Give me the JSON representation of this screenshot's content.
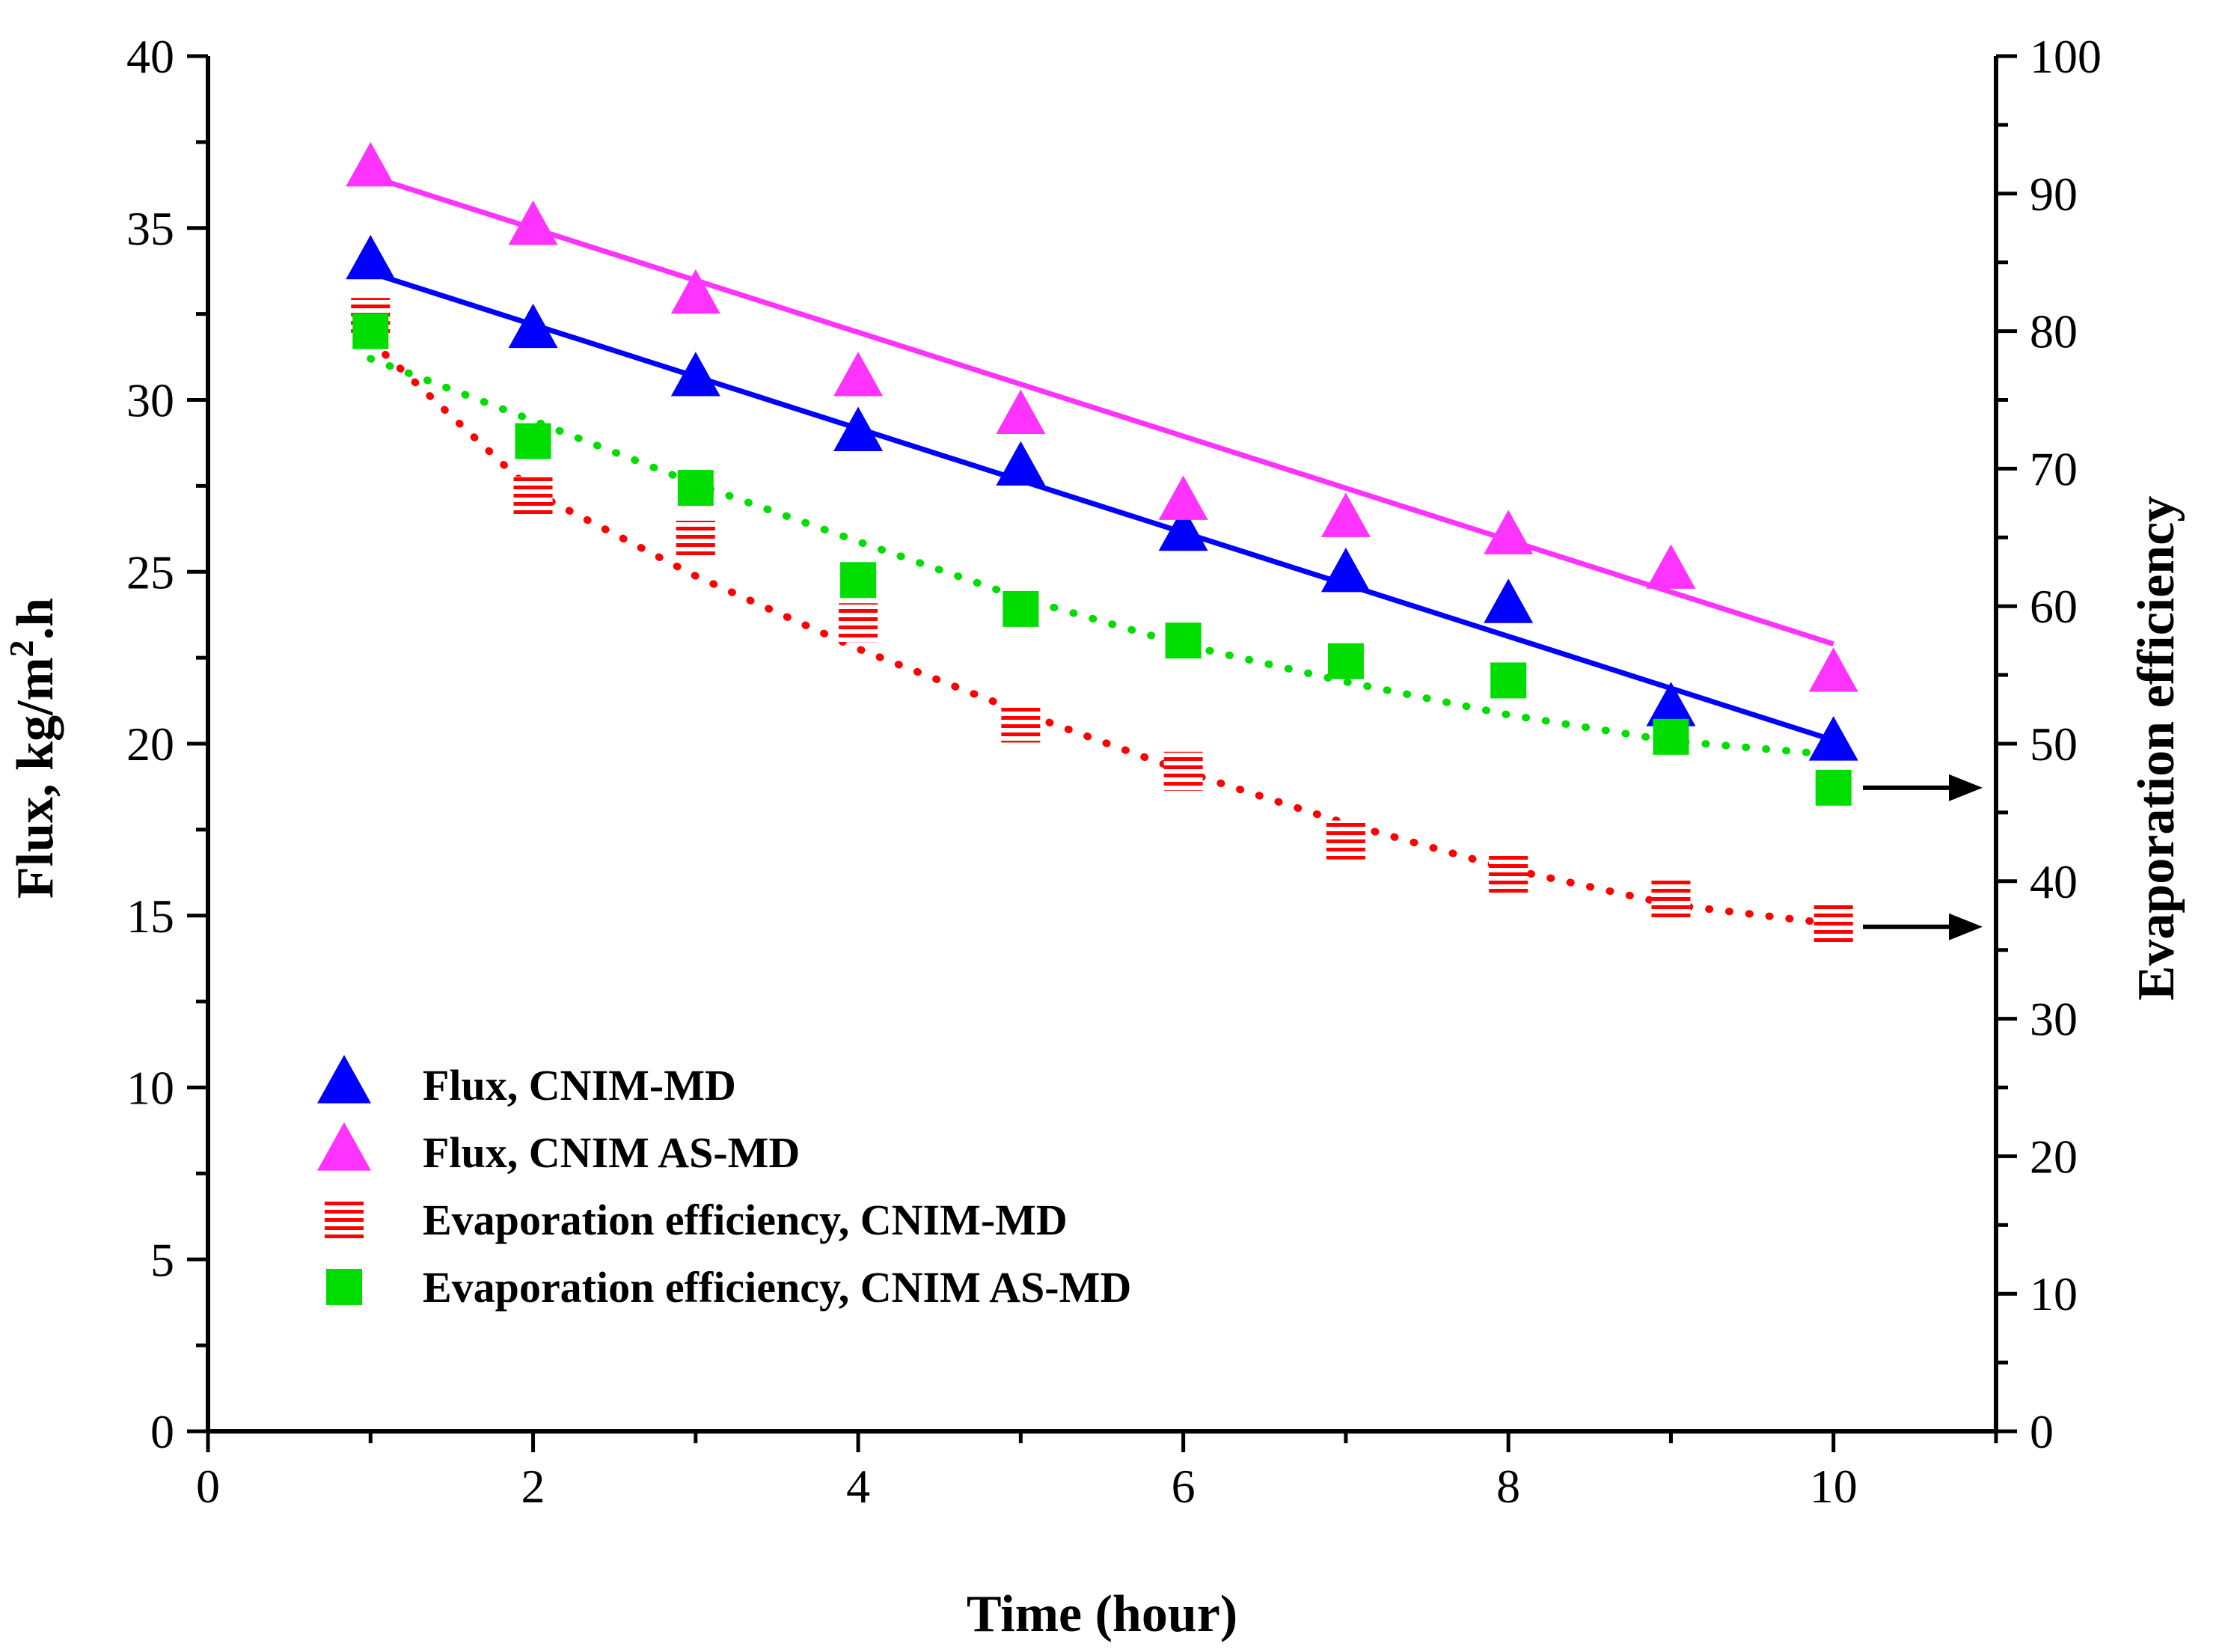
{
  "chart_data": {
    "type": "line",
    "title": "",
    "xlabel": "Time (hour)",
    "ylabel_left": {
      "prefix": "Flux, kg/m",
      "sup": "2",
      "suffix": ".h"
    },
    "ylabel_right": "Evaporation efficiency",
    "xlim": [
      0,
      11
    ],
    "ylim_left": [
      0,
      40
    ],
    "ylim_right": [
      0,
      100
    ],
    "x_ticks": [
      "0",
      "2",
      "4",
      "6",
      "8",
      "10"
    ],
    "y_left_ticks": [
      "0",
      "5",
      "10",
      "15",
      "20",
      "25",
      "30",
      "35",
      "40"
    ],
    "y_right_ticks": [
      "0",
      "10",
      "20",
      "30",
      "40",
      "50",
      "60",
      "70",
      "80",
      "90",
      "100"
    ],
    "x": [
      1,
      2,
      3,
      4,
      5,
      6,
      7,
      8,
      9,
      10
    ],
    "legend_position": "lower-left",
    "series": [
      {
        "name": "Flux, CNIM-MD",
        "axis": "left",
        "marker": "triangle",
        "color": "#0000ff",
        "line_style": "solid",
        "values": [
          34.0,
          32.0,
          30.6,
          29.0,
          28.0,
          26.1,
          24.9,
          24.0,
          21.0,
          20.0
        ],
        "fit": [
          33.7,
          20.1
        ]
      },
      {
        "name": "Flux, CNIM AS-MD",
        "axis": "left",
        "marker": "triangle",
        "color": "#ff33ff",
        "line_style": "solid",
        "values": [
          36.7,
          35.0,
          33.0,
          30.6,
          29.5,
          27.0,
          26.5,
          26.0,
          25.0,
          22.0
        ],
        "fit": [
          36.5,
          22.9
        ]
      },
      {
        "name": "Evaporation efficiency, CNIM-MD",
        "axis": "right",
        "marker": "hatched-square",
        "color": "#ff0000",
        "line_style": "dotted",
        "values": [
          81.0,
          68.0,
          64.8,
          58.8,
          51.5,
          48.0,
          43.0,
          40.5,
          38.7,
          36.9
        ],
        "fit": [
          79.3,
          68.3,
          62.2,
          56.9,
          52.3,
          48.0,
          44.2,
          40.9,
          38.3,
          36.9
        ]
      },
      {
        "name": "Evaporation efficiency, CNIM AS-MD",
        "axis": "right",
        "marker": "square",
        "color": "#00dd00",
        "line_style": "dotted",
        "values": [
          80.0,
          72.0,
          68.6,
          61.9,
          59.8,
          57.5,
          56.0,
          54.6,
          50.5,
          46.8
        ],
        "fit": [
          78.0,
          73.5,
          68.9,
          64.7,
          60.6,
          57.2,
          54.5,
          52.1,
          50.2,
          49.2
        ]
      }
    ],
    "annotations": [
      {
        "type": "arrow",
        "points_to": "right-axis",
        "near_series": "Evaporation efficiency, CNIM AS-MD"
      },
      {
        "type": "arrow",
        "points_to": "right-axis",
        "near_series": "Evaporation efficiency, CNIM-MD"
      }
    ]
  }
}
